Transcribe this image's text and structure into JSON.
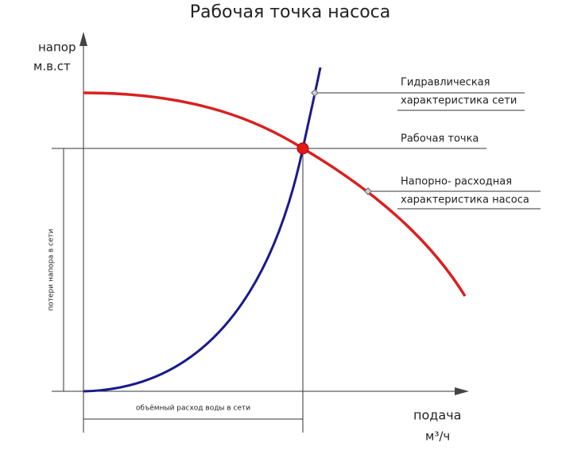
{
  "title": "Рабочая точка насоса",
  "y_axis": {
    "label": "напор",
    "unit": "м.в.ст"
  },
  "x_axis": {
    "label": "подача",
    "unit": "м³/ч"
  },
  "annotations": {
    "network_curve": [
      "Гидравлическая",
      "характеристика сети"
    ],
    "operating_point": "Рабочая точка",
    "pump_curve": [
      "Напорно- расходная",
      "характеристика насоса"
    ],
    "head_loss": "потери напора в сети",
    "flow": "объёмный расход воды в сети"
  }
}
